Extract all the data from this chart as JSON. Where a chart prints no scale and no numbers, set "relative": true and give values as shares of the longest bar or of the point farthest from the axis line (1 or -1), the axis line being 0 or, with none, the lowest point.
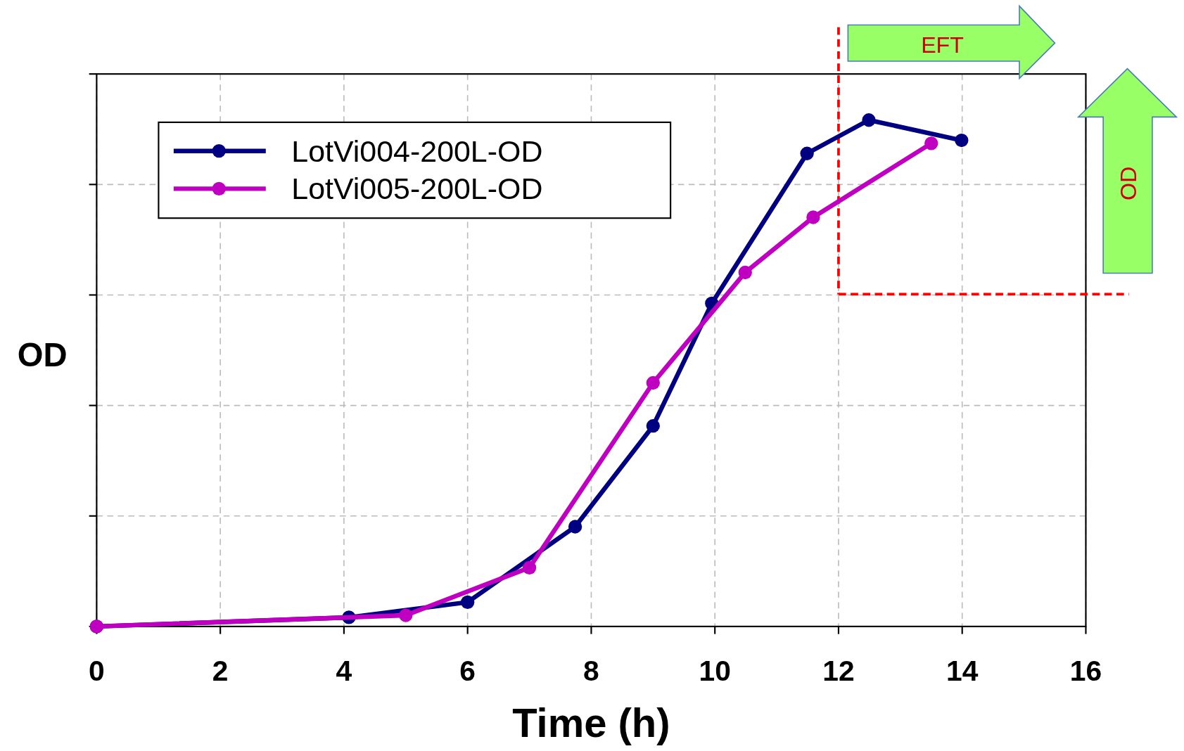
{
  "chart_data": {
    "type": "line",
    "xlabel": "Time (h)",
    "ylabel": "OD",
    "relative": true,
    "xlim": [
      0,
      16
    ],
    "xticks": [
      0,
      2,
      4,
      6,
      8,
      10,
      12,
      14,
      16
    ],
    "grid": true,
    "legend": "top left",
    "marker": "circle",
    "line_style": "solid",
    "series": [
      {
        "name": "LotVi004-200L-OD",
        "color": "#000080",
        "x": [
          0,
          4.08,
          6,
          7.74,
          9,
          9.95,
          11.49,
          12.49,
          13.99
        ],
        "values": [
          0,
          0.018,
          0.048,
          0.197,
          0.396,
          0.638,
          0.934,
          1,
          0.96
        ]
      },
      {
        "name": "LotVi005-200L-OD",
        "color": "#c000c0",
        "x": [
          0,
          5,
          7,
          9,
          10.49,
          11.59,
          13.5
        ],
        "values": [
          0,
          0.022,
          0.116,
          0.481,
          0.699,
          0.808,
          0.954
        ]
      }
    ],
    "ref_lines": [
      {
        "axis": "x",
        "value": 12,
        "color": "#ff0000",
        "line_style": "dashed"
      },
      {
        "axis": "y",
        "value": 0.656,
        "color": "#ff0000",
        "line_style": "dashed"
      }
    ],
    "annotations": [
      "EFT",
      "OD"
    ]
  }
}
